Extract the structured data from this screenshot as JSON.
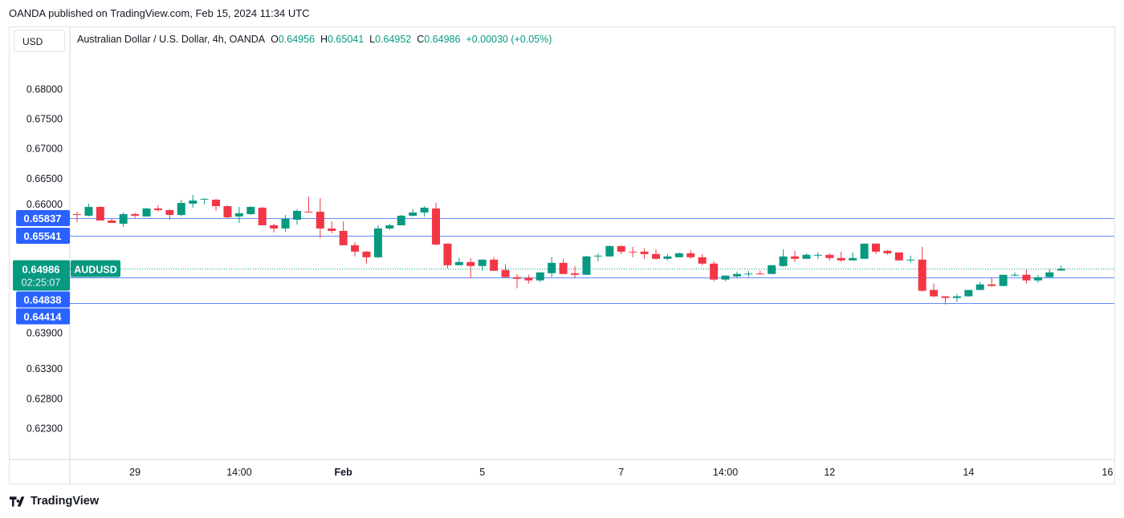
{
  "header": {
    "published": "OANDA published on TradingView.com, Feb 15, 2024 11:34 UTC"
  },
  "currency_button": "USD",
  "legend": {
    "title": "Australian Dollar / U.S. Dollar, 4h, OANDA",
    "o_label": "O",
    "o": "0.64956",
    "h_label": "H",
    "h": "0.65041",
    "l_label": "L",
    "l": "0.64952",
    "c_label": "C",
    "c": "0.64986",
    "change": "+0.00030 (+0.05%)"
  },
  "footer": {
    "brand": "TradingView"
  },
  "colors": {
    "up": "#089981",
    "down": "#F23645",
    "level": "#2962FF"
  },
  "chart_data": {
    "type": "candlestick",
    "title": "Australian Dollar / U.S. Dollar, 4h, OANDA",
    "symbol": "AUDUSD",
    "ylim": [
      0.62,
      0.6865
    ],
    "y_ticks": [
      "0.68000",
      "0.67500",
      "0.67000",
      "0.66500",
      "0.66000",
      "0.63900",
      "0.63300",
      "0.62800",
      "0.62300"
    ],
    "x_ticks": [
      {
        "label": "29",
        "index": 5
      },
      {
        "label": "14:00",
        "index": 14
      },
      {
        "label": "Feb",
        "index": 23,
        "bold": true
      },
      {
        "label": "5",
        "index": 35
      },
      {
        "label": "7",
        "index": 47
      },
      {
        "label": "14:00",
        "index": 56
      },
      {
        "label": "12",
        "index": 65
      },
      {
        "label": "14",
        "index": 77
      },
      {
        "label": "16",
        "index": 89
      }
    ],
    "current_price": {
      "value": "0.64986",
      "countdown": "02:25:07",
      "label": "AUDUSD"
    },
    "levels": [
      "0.65837",
      "0.65541",
      "0.64838",
      "0.64414"
    ],
    "ohlc": [
      [
        0.65904,
        0.65944,
        0.6577,
        0.65891
      ],
      [
        0.65877,
        0.66079,
        0.65864,
        0.66025
      ],
      [
        0.66025,
        0.66038,
        0.65797,
        0.65797
      ],
      [
        0.65797,
        0.65837,
        0.65756,
        0.65756
      ],
      [
        0.65743,
        0.65931,
        0.65689,
        0.65904
      ],
      [
        0.65904,
        0.65931,
        0.65837,
        0.65877
      ],
      [
        0.65864,
        0.66012,
        0.65864,
        0.65998
      ],
      [
        0.65998,
        0.66052,
        0.65944,
        0.65971
      ],
      [
        0.65971,
        0.65985,
        0.6581,
        0.65891
      ],
      [
        0.65891,
        0.66146,
        0.65864,
        0.66092
      ],
      [
        0.66079,
        0.66226,
        0.66012,
        0.66132
      ],
      [
        0.66146,
        0.66173,
        0.66065,
        0.66159
      ],
      [
        0.66146,
        0.66159,
        0.65958,
        0.66038
      ],
      [
        0.66038,
        0.66052,
        0.65837,
        0.6585
      ],
      [
        0.65864,
        0.66025,
        0.65756,
        0.65918
      ],
      [
        0.65904,
        0.66038,
        0.65891,
        0.66025
      ],
      [
        0.66012,
        0.66025,
        0.65716,
        0.65716
      ],
      [
        0.65716,
        0.65743,
        0.65595,
        0.65663
      ],
      [
        0.65663,
        0.65891,
        0.65609,
        0.65824
      ],
      [
        0.6581,
        0.65985,
        0.6573,
        0.65958
      ],
      [
        0.65944,
        0.66199,
        0.65931,
        0.65931
      ],
      [
        0.65944,
        0.66173,
        0.65501,
        0.65663
      ],
      [
        0.65663,
        0.65783,
        0.65582,
        0.65622
      ],
      [
        0.65622,
        0.65783,
        0.65381,
        0.65381
      ],
      [
        0.65381,
        0.65434,
        0.65193,
        0.65273
      ],
      [
        0.65273,
        0.65287,
        0.65072,
        0.65179
      ],
      [
        0.65179,
        0.65716,
        0.65166,
        0.65663
      ],
      [
        0.65663,
        0.65743,
        0.65636,
        0.65716
      ],
      [
        0.65716,
        0.65891,
        0.65716,
        0.65877
      ],
      [
        0.65877,
        0.65985,
        0.65864,
        0.65931
      ],
      [
        0.65931,
        0.66038,
        0.65864,
        0.66012
      ],
      [
        0.65998,
        0.66092,
        0.65381,
        0.65394
      ],
      [
        0.65408,
        0.65408,
        0.64992,
        0.65045
      ],
      [
        0.65045,
        0.65166,
        0.65045,
        0.65099
      ],
      [
        0.65099,
        0.65166,
        0.64831,
        0.65032
      ],
      [
        0.65032,
        0.65139,
        0.64951,
        0.65139
      ],
      [
        0.65139,
        0.65179,
        0.64951,
        0.64951
      ],
      [
        0.64965,
        0.65059,
        0.64831,
        0.64844
      ],
      [
        0.64844,
        0.64898,
        0.64656,
        0.64817
      ],
      [
        0.64831,
        0.64884,
        0.64737,
        0.6479
      ],
      [
        0.6479,
        0.64925,
        0.64763,
        0.64925
      ],
      [
        0.64911,
        0.65179,
        0.64844,
        0.65085
      ],
      [
        0.65085,
        0.65153,
        0.64898,
        0.64898
      ],
      [
        0.64911,
        0.65032,
        0.64831,
        0.64884
      ],
      [
        0.64884,
        0.65206,
        0.64884,
        0.65193
      ],
      [
        0.65193,
        0.65246,
        0.65112,
        0.65206
      ],
      [
        0.65193,
        0.65381,
        0.65193,
        0.65367
      ],
      [
        0.65367,
        0.65381,
        0.65233,
        0.65273
      ],
      [
        0.65273,
        0.65354,
        0.65179,
        0.6527
      ],
      [
        0.65273,
        0.65327,
        0.65153,
        0.65233
      ],
      [
        0.65233,
        0.65313,
        0.65139,
        0.65153
      ],
      [
        0.65153,
        0.65233,
        0.65126,
        0.65193
      ],
      [
        0.65179,
        0.6526,
        0.65179,
        0.65246
      ],
      [
        0.65246,
        0.653,
        0.65153,
        0.65179
      ],
      [
        0.65179,
        0.65233,
        0.65045,
        0.65072
      ],
      [
        0.65072,
        0.65112,
        0.64777,
        0.64804
      ],
      [
        0.64804,
        0.64871,
        0.64777,
        0.64871
      ],
      [
        0.64857,
        0.64938,
        0.64831,
        0.64898
      ],
      [
        0.64898,
        0.64951,
        0.64844,
        0.64904
      ],
      [
        0.64904,
        0.64951,
        0.64884,
        0.64898
      ],
      [
        0.64898,
        0.65045,
        0.64898,
        0.65045
      ],
      [
        0.65032,
        0.65313,
        0.65018,
        0.65193
      ],
      [
        0.65193,
        0.65287,
        0.65099,
        0.65153
      ],
      [
        0.65153,
        0.65246,
        0.65153,
        0.6522
      ],
      [
        0.65213,
        0.6526,
        0.65153,
        0.6522
      ],
      [
        0.6522,
        0.65246,
        0.65126,
        0.65166
      ],
      [
        0.65166,
        0.65273,
        0.65099,
        0.65126
      ],
      [
        0.65126,
        0.6526,
        0.65126,
        0.65166
      ],
      [
        0.65153,
        0.65408,
        0.65153,
        0.65408
      ],
      [
        0.65408,
        0.65408,
        0.65233,
        0.65273
      ],
      [
        0.65287,
        0.653,
        0.6522,
        0.65246
      ],
      [
        0.6526,
        0.6526,
        0.65126,
        0.65126
      ],
      [
        0.65126,
        0.65206,
        0.65085,
        0.65139
      ],
      [
        0.65139,
        0.65354,
        0.64602,
        0.64616
      ],
      [
        0.64629,
        0.64737,
        0.64508,
        0.64522
      ],
      [
        0.64522,
        0.64522,
        0.64387,
        0.64495
      ],
      [
        0.64495,
        0.64562,
        0.64428,
        0.64522
      ],
      [
        0.64522,
        0.64629,
        0.64522,
        0.64629
      ],
      [
        0.64629,
        0.64763,
        0.64629,
        0.64723
      ],
      [
        0.64723,
        0.64844,
        0.64683,
        0.64696
      ],
      [
        0.64696,
        0.64884,
        0.64696,
        0.64884
      ],
      [
        0.64878,
        0.64925,
        0.64857,
        0.64884
      ],
      [
        0.64884,
        0.64978,
        0.64737,
        0.6479
      ],
      [
        0.6479,
        0.64884,
        0.6475,
        0.64844
      ],
      [
        0.64844,
        0.64978,
        0.64844,
        0.64925
      ],
      [
        0.64956,
        0.65041,
        0.64952,
        0.64986
      ]
    ]
  }
}
